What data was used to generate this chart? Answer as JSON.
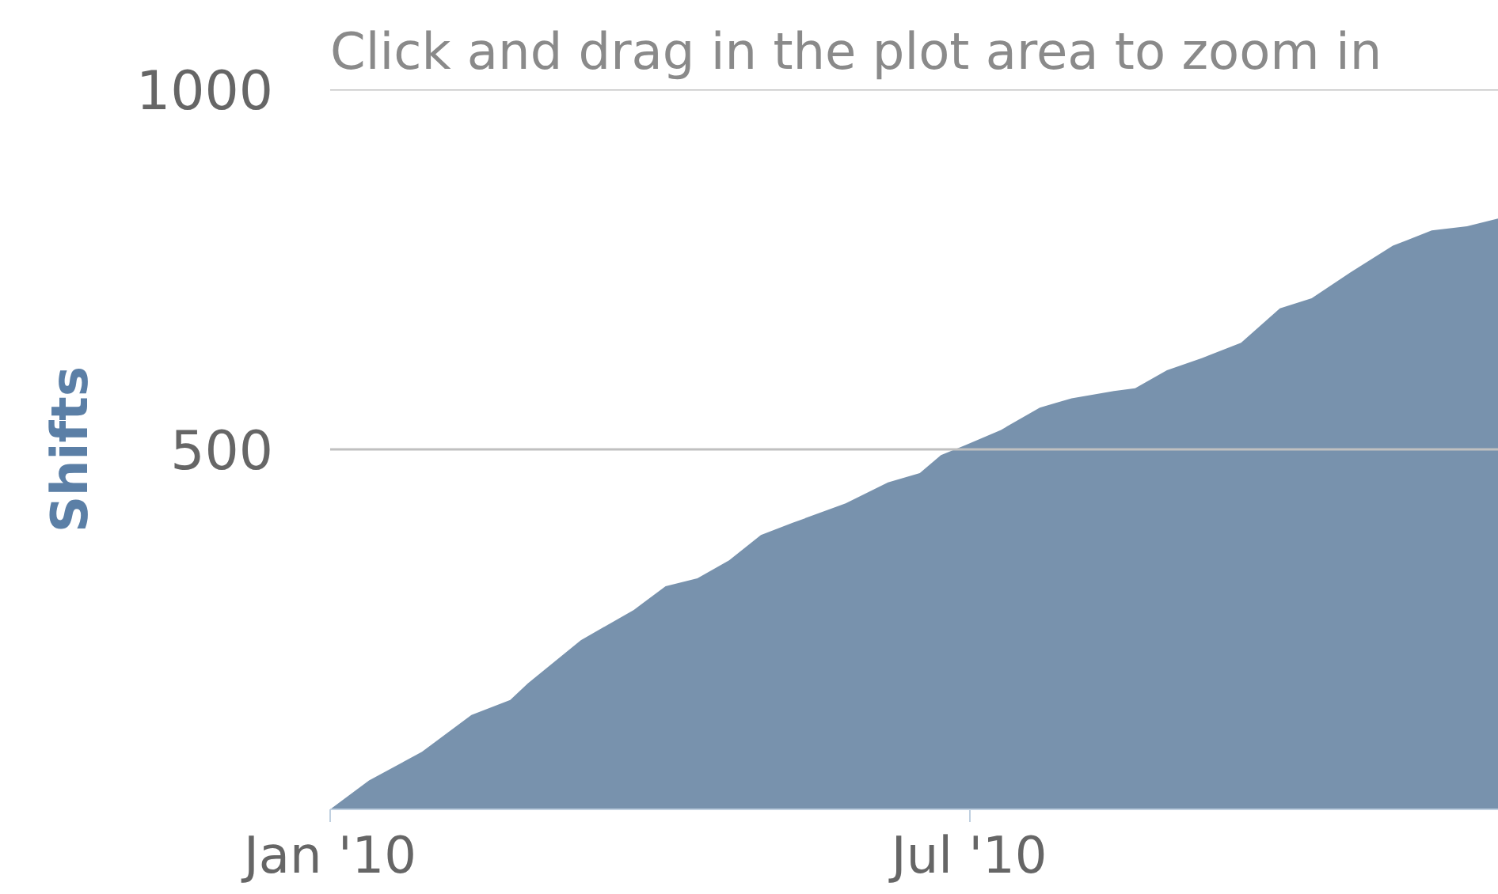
{
  "chart_data": {
    "type": "area",
    "subtitle": "Click and drag in the plot area to zoom in",
    "ylabel": "Shifts",
    "x": [
      "2010-01-01",
      "2010-01-12",
      "2010-01-27",
      "2010-02-10",
      "2010-02-21",
      "2010-02-26",
      "2010-03-13",
      "2010-03-28",
      "2010-04-06",
      "2010-04-15",
      "2010-04-24",
      "2010-05-03",
      "2010-05-12",
      "2010-05-27",
      "2010-06-08",
      "2010-06-17",
      "2010-06-23",
      "2010-06-30",
      "2010-07-10",
      "2010-07-21",
      "2010-07-30",
      "2010-08-11",
      "2010-08-17",
      "2010-08-26",
      "2010-09-05",
      "2010-09-16",
      "2010-09-27",
      "2010-10-06",
      "2010-10-17",
      "2010-10-29",
      "2010-11-09",
      "2010-11-19",
      "2010-11-28"
    ],
    "values": [
      0,
      40,
      80,
      131,
      152,
      175,
      235,
      277,
      310,
      321,
      346,
      381,
      398,
      425,
      454,
      467,
      492,
      506,
      527,
      558,
      571,
      581,
      585,
      610,
      627,
      648,
      696,
      710,
      746,
      783,
      804,
      810,
      821
    ],
    "color": "#7892ad",
    "xlim": [
      "2010-01-01",
      "2010-11-28"
    ],
    "xticks": [
      {
        "value": "2010-01-01",
        "label": "Jan '10"
      },
      {
        "value": "2010-07-01",
        "label": "Jul '10"
      }
    ],
    "ylim": [
      0,
      1000
    ],
    "yticks": [
      500,
      1000
    ],
    "grid": "y"
  }
}
